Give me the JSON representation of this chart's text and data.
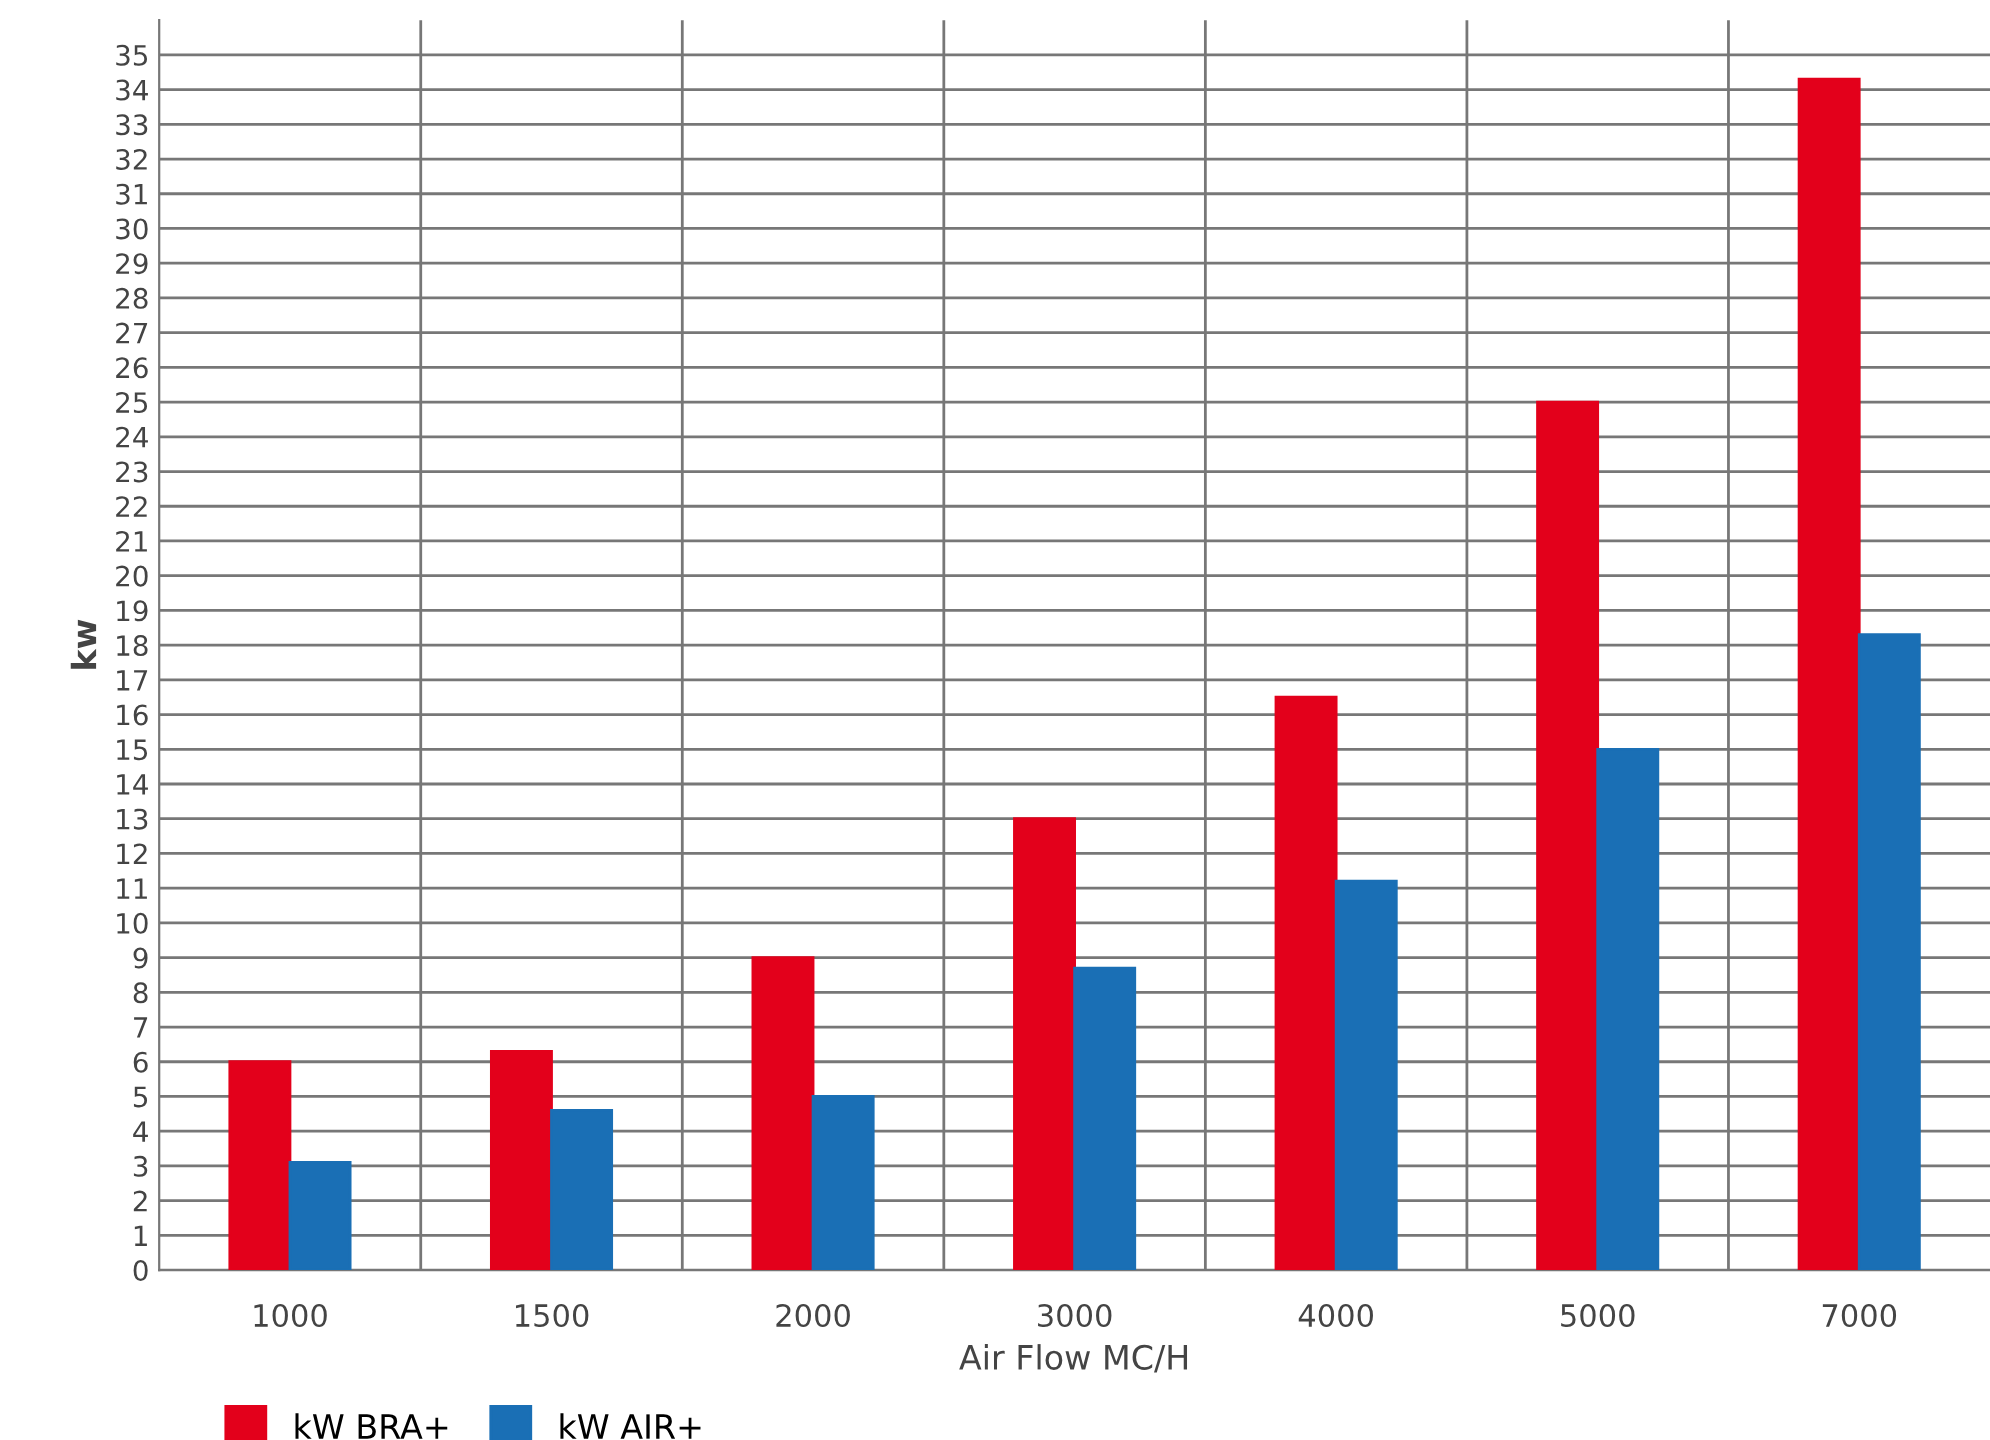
{
  "chart_data": {
    "type": "bar",
    "xlabel": "Air Flow MC/H",
    "ylabel": "kw",
    "categories": [
      "1000",
      "1500",
      "2000",
      "3000",
      "4000",
      "5000",
      "7000"
    ],
    "series": [
      {
        "name": "kW BRA+",
        "color": "#e3001b",
        "values": [
          6,
          6.3,
          9,
          13,
          16.5,
          25,
          34.3
        ]
      },
      {
        "name": "kW AIR+",
        "color": "#1a6fb5",
        "values": [
          3.1,
          4.6,
          5,
          8.7,
          11.2,
          15,
          18.3
        ]
      }
    ],
    "ylim": [
      0,
      36
    ],
    "yticks": [
      0,
      1,
      2,
      3,
      4,
      5,
      6,
      7,
      8,
      9,
      10,
      11,
      12,
      13,
      14,
      15,
      16,
      17,
      18,
      19,
      20,
      21,
      22,
      23,
      24,
      25,
      26,
      27,
      28,
      29,
      30,
      31,
      32,
      33,
      34,
      35
    ],
    "grid": true,
    "legend": "bottom left"
  }
}
